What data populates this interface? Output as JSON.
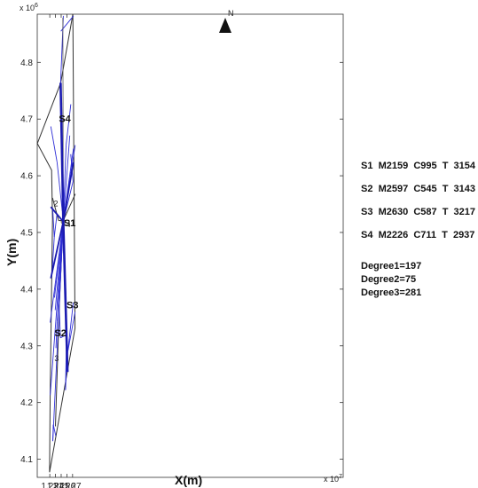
{
  "chart_data": {
    "type": "network-map",
    "xlabel": "X(m)",
    "ylabel": "Y(m)",
    "x_exponent": "× 10^7",
    "y_exponent": "× 10^6",
    "x_exponent_label": "x 10",
    "x_exponent_power": "7",
    "y_exponent_label": "x 10",
    "y_exponent_power": "6",
    "xlim": [
      12.208,
      12.745
    ],
    "ylim": [
      4.068,
      4.885
    ],
    "x_ticks": [
      12.23,
      12.24,
      12.25,
      12.26,
      12.27
    ],
    "x_tick_labels": [
      "1.23",
      "1.24",
      "1.25",
      "1.26",
      "1.27"
    ],
    "y_ticks": [
      4.1,
      4.2,
      4.3,
      4.4,
      4.5,
      4.6,
      4.7,
      4.8
    ],
    "y_tick_labels": [
      "4.1",
      "4.2",
      "4.3",
      "4.4",
      "4.5",
      "4.6",
      "4.7",
      "4.8"
    ],
    "grid": false,
    "north_label": "N",
    "boundary": [
      [
        12.2082,
        4.657
      ],
      [
        12.2492,
        4.764
      ],
      [
        12.2705,
        4.885
      ],
      [
        12.2743,
        4.331
      ],
      [
        12.2296,
        4.077
      ],
      [
        12.2307,
        4.216
      ],
      [
        12.2348,
        4.523
      ],
      [
        12.2332,
        4.61
      ]
    ],
    "region_dividers": [
      [
        [
          12.2348,
          4.561
        ],
        [
          12.2455,
          4.521
        ]
      ],
      [
        [
          12.2455,
          4.521
        ],
        [
          12.2537,
          4.521
        ]
      ],
      [
        [
          12.2537,
          4.521
        ],
        [
          12.2748,
          4.568
        ]
      ],
      [
        [
          12.2533,
          4.519
        ],
        [
          12.2469,
          4.375
        ],
        [
          12.2399,
          4.158
        ]
      ]
    ],
    "center": [
      12.2537,
      4.519
    ],
    "circle_radius_x": 0.0035,
    "rays": [
      {
        "name": "S1",
        "to": [
          12.2537,
          4.519
        ],
        "from": [
          12.2537,
          4.519
        ]
      },
      {
        "name": "S4",
        "to": [
          12.249,
          4.764
        ]
      },
      {
        "name": "S3",
        "to": [
          12.2611,
          4.254
        ]
      },
      {
        "name": "ray-east",
        "to": [
          12.2715,
          4.624
        ]
      },
      {
        "name": "ray-west",
        "to": [
          12.2318,
          4.545
        ]
      },
      {
        "name": "ray-sw",
        "to": [
          12.2318,
          4.419
        ]
      }
    ],
    "thin_lines": [
      [
        [
          12.2495,
          4.855
        ],
        [
          12.2716,
          4.882
        ]
      ],
      [
        [
          12.249,
          4.764
        ],
        [
          12.2538,
          4.882
        ]
      ],
      [
        [
          12.2318,
          4.687
        ],
        [
          12.2428,
          4.624
        ]
      ],
      [
        [
          12.2428,
          4.624
        ],
        [
          12.2519,
          4.538
        ]
      ],
      [
        [
          12.2537,
          4.519
        ],
        [
          12.2586,
          4.654
        ]
      ],
      [
        [
          12.2586,
          4.654
        ],
        [
          12.2669,
          4.726
        ]
      ],
      [
        [
          12.2537,
          4.519
        ],
        [
          12.2651,
          4.671
        ]
      ],
      [
        [
          12.2537,
          4.519
        ],
        [
          12.2715,
          4.648
        ]
      ],
      [
        [
          12.2537,
          4.519
        ],
        [
          12.2746,
          4.654
        ]
      ],
      [
        [
          12.2668,
          4.638
        ],
        [
          12.2708,
          4.59
        ]
      ],
      [
        [
          12.2537,
          4.519
        ],
        [
          12.2708,
          4.59
        ]
      ],
      [
        [
          12.2379,
          4.492
        ],
        [
          12.2427,
          4.533
        ]
      ],
      [
        [
          12.2379,
          4.492
        ],
        [
          12.2352,
          4.54
        ]
      ],
      [
        [
          12.2379,
          4.492
        ],
        [
          12.2341,
          4.43
        ]
      ],
      [
        [
          12.2537,
          4.519
        ],
        [
          12.2307,
          4.341
        ]
      ],
      [
        [
          12.2537,
          4.519
        ],
        [
          12.2382,
          4.385
        ]
      ],
      [
        [
          12.2537,
          4.519
        ],
        [
          12.2395,
          4.363
        ]
      ],
      [
        [
          12.2537,
          4.519
        ],
        [
          12.2429,
          4.343
        ]
      ],
      [
        [
          12.2429,
          4.343
        ],
        [
          12.2408,
          4.296
        ]
      ],
      [
        [
          12.2537,
          4.519
        ],
        [
          12.2308,
          4.213
        ]
      ],
      [
        [
          12.2537,
          4.519
        ],
        [
          12.2353,
          4.132
        ]
      ],
      [
        [
          12.2353,
          4.132
        ],
        [
          12.2362,
          4.161
        ]
      ],
      [
        [
          12.2362,
          4.161
        ],
        [
          12.2405,
          4.141
        ]
      ],
      [
        [
          12.2537,
          4.519
        ],
        [
          12.2463,
          4.369
        ]
      ],
      [
        [
          12.2463,
          4.369
        ],
        [
          12.2488,
          4.314
        ]
      ],
      [
        [
          12.2488,
          4.314
        ],
        [
          12.2595,
          4.32
        ]
      ],
      [
        [
          12.2595,
          4.32
        ],
        [
          12.2575,
          4.222
        ]
      ],
      [
        [
          12.2575,
          4.222
        ],
        [
          12.2602,
          4.277
        ]
      ],
      [
        [
          12.2602,
          4.277
        ],
        [
          12.2712,
          4.376
        ]
      ],
      [
        [
          12.262,
          4.292
        ],
        [
          12.2745,
          4.36
        ]
      ],
      [
        [
          12.2569,
          4.426
        ],
        [
          12.2585,
          4.387
        ]
      ]
    ],
    "labels": [
      {
        "text": "S4",
        "x": 12.2459,
        "y": 4.695,
        "kind": "region"
      },
      {
        "text": "S1",
        "x": 12.2546,
        "y": 4.511,
        "kind": "region"
      },
      {
        "text": "S3",
        "x": 12.2594,
        "y": 4.366,
        "kind": "region"
      },
      {
        "text": "S2",
        "x": 12.2382,
        "y": 4.317,
        "kind": "region"
      },
      {
        "text": "2",
        "x": 12.2368,
        "y": 4.546,
        "kind": "small"
      },
      {
        "text": "4",
        "x": 12.2588,
        "y": 4.509,
        "kind": "small"
      },
      {
        "text": "3",
        "x": 12.2382,
        "y": 4.273,
        "kind": "small"
      }
    ],
    "annotations": [
      "S1  M2159  C995  T  3154",
      "S2  M2597  C545  T  3143",
      "S3  M2630  C587  T  3217",
      "S4  M2226  C711  T  2937",
      "Degree1=197",
      "Degree2=75",
      "Degree3=281"
    ],
    "colors": {
      "route": "#2f2fd6",
      "route_bold": "#1a1ab0",
      "boundary": "#333333",
      "axis": "#333333"
    }
  }
}
